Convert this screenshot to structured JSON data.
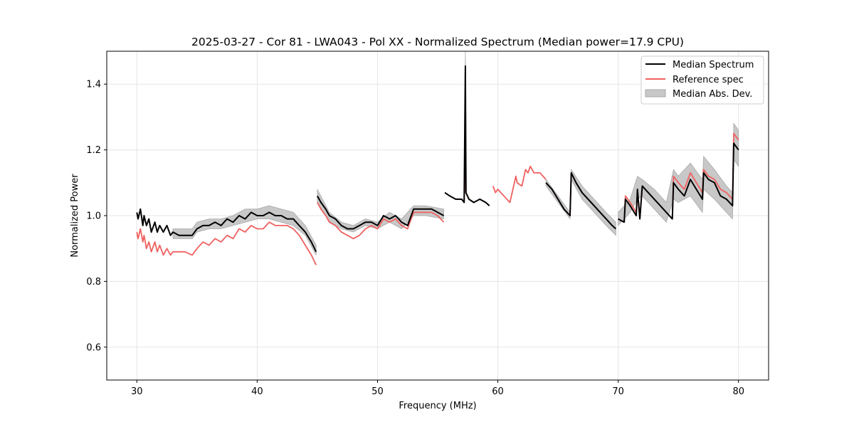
{
  "chart_data": {
    "type": "line",
    "title": "2025-03-27 - Cor 81 - LWA043 - Pol XX - Normalized Spectrum (Median power=17.9 CPU)",
    "xlabel": "Frequency (MHz)",
    "ylabel": "Normalized Power",
    "xlim": [
      27.5,
      82.5
    ],
    "ylim": [
      0.5,
      1.5
    ],
    "xticks": [
      30,
      40,
      50,
      60,
      70,
      80
    ],
    "yticks": [
      0.6,
      0.8,
      1.0,
      1.2,
      1.4
    ],
    "xtick_labels": [
      "30",
      "40",
      "50",
      "60",
      "70",
      "80"
    ],
    "ytick_labels": [
      "0.6",
      "0.8",
      "1.0",
      "1.2",
      "1.4"
    ],
    "grid": true,
    "legend_position": "top-right",
    "colors": {
      "median": "#000000",
      "reference": "#f06060",
      "mad_fill": "#c8c8c8",
      "mad_edge": "#a8a8a8",
      "grid": "#e5e5e5"
    },
    "series": [
      {
        "name": "Median Spectrum",
        "type": "line",
        "segments": [
          {
            "x": [
              30.0,
              30.1,
              30.3,
              30.5,
              30.6,
              30.8,
              31.0,
              31.2,
              31.5,
              31.7,
              31.9,
              32.2,
              32.5,
              32.8,
              33.0,
              33.5,
              34.0,
              34.6,
              35.0,
              35.5,
              36.0,
              36.5,
              37.0,
              37.5,
              38.0,
              38.5,
              39.0,
              39.5,
              40.0,
              40.5,
              41.0,
              41.5,
              42.0,
              42.5,
              43.0,
              43.5,
              44.0,
              44.5,
              44.9
            ],
            "y": [
              1.01,
              0.99,
              1.02,
              0.97,
              1.0,
              0.97,
              0.99,
              0.95,
              0.98,
              0.95,
              0.97,
              0.95,
              0.97,
              0.94,
              0.95,
              0.94,
              0.94,
              0.94,
              0.96,
              0.97,
              0.97,
              0.98,
              0.97,
              0.99,
              0.98,
              1.0,
              0.99,
              1.01,
              1.0,
              1.0,
              1.01,
              1.0,
              1.0,
              0.99,
              0.99,
              0.97,
              0.95,
              0.92,
              0.89
            ]
          },
          {
            "x": [
              45.0,
              45.3,
              45.7,
              46.0,
              46.5,
              47.0,
              47.5,
              48.0,
              48.5,
              49.0,
              49.5,
              50.0,
              50.5,
              51.0,
              51.5,
              52.0,
              52.5,
              53.0,
              53.5,
              54.0,
              54.5,
              55.0,
              55.5
            ],
            "y": [
              1.06,
              1.04,
              1.02,
              1.0,
              0.99,
              0.97,
              0.96,
              0.96,
              0.97,
              0.98,
              0.98,
              0.97,
              1.0,
              0.99,
              1.0,
              0.98,
              0.97,
              1.02,
              1.02,
              1.02,
              1.02,
              1.01,
              1.0
            ]
          },
          {
            "x": [
              55.6,
              56.0,
              56.5,
              57.0,
              57.2,
              57.3,
              57.35,
              57.6,
              58.0,
              58.5,
              59.0,
              59.3
            ],
            "y": [
              1.07,
              1.06,
              1.05,
              1.05,
              1.04,
              1.455,
              1.07,
              1.05,
              1.04,
              1.05,
              1.04,
              1.03
            ]
          },
          {
            "x": [
              64.0,
              64.5,
              65.0,
              65.5,
              66.0,
              66.1,
              66.5,
              67.0,
              67.5,
              68.0,
              68.5,
              69.0,
              69.5,
              69.8
            ],
            "y": [
              1.1,
              1.08,
              1.05,
              1.02,
              1.0,
              1.13,
              1.1,
              1.07,
              1.05,
              1.03,
              1.01,
              0.99,
              0.97,
              0.96
            ]
          },
          {
            "x": [
              70.0,
              70.5,
              70.6,
              71.0,
              71.5,
              71.6,
              71.8,
              72.0,
              72.5,
              73.0,
              73.5,
              74.0,
              74.5,
              74.6,
              75.0,
              75.5,
              76.0,
              76.5,
              77.0,
              77.1,
              77.5,
              78.0,
              78.5,
              79.0,
              79.5,
              79.6,
              80.0
            ],
            "y": [
              0.99,
              0.98,
              1.05,
              1.03,
              1.0,
              1.08,
              0.99,
              1.09,
              1.07,
              1.05,
              1.03,
              1.01,
              0.99,
              1.1,
              1.08,
              1.06,
              1.11,
              1.08,
              1.05,
              1.13,
              1.11,
              1.1,
              1.06,
              1.05,
              1.03,
              1.22,
              1.2
            ]
          }
        ]
      },
      {
        "name": "Reference spec",
        "type": "line",
        "segments": [
          {
            "x": [
              30.0,
              30.1,
              30.3,
              30.5,
              30.6,
              30.8,
              31.0,
              31.2,
              31.5,
              31.7,
              31.9,
              32.2,
              32.5,
              32.8,
              33.0,
              33.5,
              34.0,
              34.6,
              35.0,
              35.5,
              36.0,
              36.5,
              37.0,
              37.5,
              38.0,
              38.5,
              39.0,
              39.5,
              40.0,
              40.5,
              41.0,
              41.5,
              42.0,
              42.5,
              43.0,
              43.5,
              44.0,
              44.5,
              44.9
            ],
            "y": [
              0.95,
              0.93,
              0.96,
              0.92,
              0.94,
              0.9,
              0.92,
              0.89,
              0.92,
              0.89,
              0.91,
              0.88,
              0.9,
              0.88,
              0.89,
              0.89,
              0.89,
              0.88,
              0.9,
              0.92,
              0.91,
              0.93,
              0.92,
              0.94,
              0.93,
              0.96,
              0.95,
              0.97,
              0.96,
              0.96,
              0.98,
              0.97,
              0.97,
              0.97,
              0.96,
              0.94,
              0.91,
              0.88,
              0.85
            ]
          },
          {
            "x": [
              45.0,
              45.3,
              45.7,
              46.0,
              46.5,
              47.0,
              47.5,
              48.0,
              48.5,
              49.0,
              49.5,
              50.0,
              50.5,
              51.0,
              51.5,
              52.0,
              52.5,
              53.0,
              53.5,
              54.0,
              54.5,
              55.0,
              55.5
            ],
            "y": [
              1.04,
              1.02,
              1.0,
              0.98,
              0.97,
              0.95,
              0.94,
              0.93,
              0.94,
              0.96,
              0.97,
              0.96,
              0.99,
              0.98,
              0.99,
              0.97,
              0.96,
              1.01,
              1.01,
              1.01,
              1.01,
              1.0,
              0.98
            ]
          },
          {
            "x": [
              55.6,
              56.0,
              56.5,
              57.0,
              57.2,
              57.3,
              57.35,
              57.6,
              58.0,
              58.5,
              59.0,
              59.3
            ],
            "y": [
              1.07,
              1.06,
              1.05,
              1.05,
              1.04,
              1.3,
              1.07,
              1.05,
              1.04,
              1.05,
              1.04,
              1.03
            ]
          },
          {
            "x": [
              59.6,
              59.8,
              60.0,
              60.5,
              61.0,
              61.5,
              61.6,
              62.0,
              62.3,
              62.5,
              62.7,
              63.0,
              63.5,
              64.0
            ],
            "y": [
              1.09,
              1.07,
              1.08,
              1.06,
              1.04,
              1.12,
              1.1,
              1.09,
              1.14,
              1.13,
              1.15,
              1.13,
              1.13,
              1.11
            ]
          },
          {
            "x": [
              64.0,
              64.5,
              65.0,
              65.5,
              66.0,
              66.1,
              66.5,
              67.0,
              67.5,
              68.0,
              68.5,
              69.0,
              69.5,
              69.8
            ],
            "y": [
              1.1,
              1.08,
              1.05,
              1.02,
              1.0,
              1.13,
              1.1,
              1.07,
              1.05,
              1.03,
              1.01,
              0.99,
              0.97,
              0.96
            ]
          },
          {
            "x": [
              70.0,
              70.5,
              70.6,
              71.0,
              71.5,
              71.6,
              71.8,
              72.0,
              72.5,
              73.0,
              73.5,
              74.0,
              74.5,
              74.6,
              75.0,
              75.5,
              76.0,
              76.5,
              77.0,
              77.1,
              77.5,
              78.0,
              78.5,
              79.0,
              79.5,
              79.6,
              80.0
            ],
            "y": [
              0.99,
              0.98,
              1.06,
              1.04,
              1.01,
              1.07,
              0.99,
              1.09,
              1.07,
              1.05,
              1.03,
              1.01,
              0.99,
              1.12,
              1.1,
              1.08,
              1.13,
              1.1,
              1.07,
              1.14,
              1.12,
              1.11,
              1.08,
              1.07,
              1.05,
              1.25,
              1.23
            ]
          }
        ]
      },
      {
        "name": "Median Abs. Dev.",
        "type": "area",
        "segments": [
          {
            "x": [
              33.0,
              34.0,
              34.6,
              35.0,
              36.0,
              37.0,
              38.0,
              39.0,
              40.0,
              41.0,
              42.0,
              43.0,
              44.0,
              44.9
            ],
            "low": [
              0.93,
              0.93,
              0.93,
              0.95,
              0.96,
              0.96,
              0.97,
              0.98,
              0.99,
              0.99,
              0.98,
              0.97,
              0.94,
              0.88
            ],
            "high": [
              0.96,
              0.96,
              0.96,
              0.98,
              0.99,
              0.99,
              1.0,
              1.02,
              1.02,
              1.03,
              1.02,
              1.01,
              0.97,
              0.91
            ]
          },
          {
            "x": [
              45.0,
              46.0,
              47.0,
              48.0,
              49.0,
              50.0,
              51.0,
              52.0,
              53.0,
              54.0,
              55.5
            ],
            "low": [
              1.04,
              0.98,
              0.96,
              0.95,
              0.97,
              0.96,
              0.98,
              0.96,
              1.0,
              1.0,
              0.99
            ],
            "high": [
              1.08,
              1.01,
              0.98,
              0.97,
              0.99,
              0.98,
              1.01,
              0.99,
              1.03,
              1.03,
              1.02
            ]
          },
          {
            "x": [
              57.2,
              57.3,
              57.4
            ],
            "low": [
              1.04,
              1.3,
              1.06
            ],
            "high": [
              1.06,
              1.5,
              1.08
            ]
          },
          {
            "x": [
              64.0,
              65.0,
              66.0,
              66.1,
              67.0,
              68.0,
              69.0,
              69.8
            ],
            "low": [
              1.09,
              1.04,
              0.99,
              1.11,
              1.05,
              1.01,
              0.97,
              0.94
            ],
            "high": [
              1.11,
              1.06,
              1.01,
              1.14,
              1.09,
              1.05,
              1.01,
              0.98
            ]
          },
          {
            "x": [
              70.0,
              71.0,
              71.6,
              72.0,
              73.0,
              74.0,
              74.6,
              75.0,
              76.0,
              77.0,
              77.1,
              78.0,
              79.0,
              79.5,
              79.6,
              80.0
            ],
            "low": [
              0.97,
              1.01,
              1.05,
              1.06,
              1.02,
              0.98,
              1.05,
              1.04,
              1.06,
              1.01,
              1.08,
              1.05,
              1.01,
              0.99,
              1.17,
              1.15
            ],
            "high": [
              1.01,
              1.05,
              1.12,
              1.11,
              1.08,
              1.04,
              1.14,
              1.12,
              1.16,
              1.11,
              1.18,
              1.14,
              1.09,
              1.07,
              1.28,
              1.26
            ]
          }
        ]
      }
    ]
  }
}
